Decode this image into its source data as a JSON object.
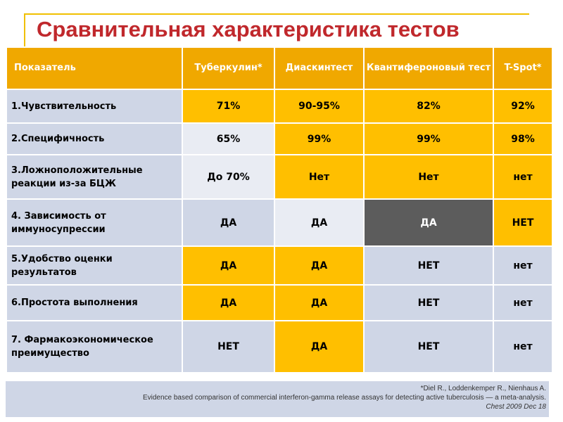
{
  "title": "Сравнительная характеристика тестов",
  "table": {
    "headers": [
      "Показатель",
      "Туберкулин*",
      "Диаскинтест",
      "Квантифероновый тест",
      "T-Spot*"
    ],
    "rows": [
      {
        "label": "1.Чувствительность",
        "cells": [
          "71%",
          "90-95%",
          "82%",
          "92%"
        ]
      },
      {
        "label": "2.Специфичность",
        "cells": [
          "65%",
          "99%",
          "99%",
          "98%"
        ]
      },
      {
        "label": "3.Ложноположительные реакции из-за БЦЖ",
        "cells": [
          "До 70%",
          "Нет",
          "Нет",
          "нет"
        ]
      },
      {
        "label": "4. Зависимость от иммуносупрессии",
        "cells": [
          "ДА",
          "ДА",
          "ДА",
          "НЕТ"
        ]
      },
      {
        "label": "5.Удобство оценки результатов",
        "cells": [
          "ДА",
          "ДА",
          "НЕТ",
          "нет"
        ]
      },
      {
        "label": "6.Простота выполнения",
        "cells": [
          "ДА",
          "ДА",
          "НЕТ",
          "нет"
        ]
      },
      {
        "label": "7. Фармакоэкономическое преимущество",
        "cells": [
          "НЕТ",
          "ДА",
          "НЕТ",
          "нет"
        ]
      }
    ]
  },
  "footnote": {
    "line1": "*Diel R., Loddenkemper R., Nienhaus A.",
    "line2": "Evidence based comparison of commercial interferon-gamma release assays for detecting active tuberculosis — a meta-analysis.",
    "line3": "Chest 2009 Dec 18"
  },
  "colors": {
    "title": "#c0282c",
    "header": "#f0a800",
    "highlight": "#ffbf00",
    "row_label": "#cfd6e6",
    "dark_cell": "#5c5c5c"
  }
}
